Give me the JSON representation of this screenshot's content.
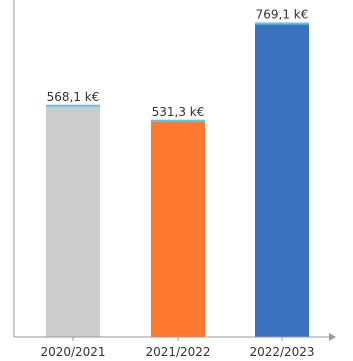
{
  "chart_data": {
    "type": "bar",
    "title": "",
    "xlabel": "",
    "ylabel": "",
    "categories": [
      "2020/2021",
      "2021/2022",
      "2022/2023"
    ],
    "values": [
      568.1,
      531.3,
      769.1
    ],
    "value_labels": [
      "568,1 k€",
      "531,3 k€",
      "769,1 k€"
    ],
    "ylim": [
      0,
      800
    ],
    "grid": false,
    "legend": "none",
    "colors": [
      "#cccccc",
      "#ff7a30",
      "#3b72c0"
    ],
    "cap_color": "#5fc8e0",
    "axis_color": "#999999"
  }
}
